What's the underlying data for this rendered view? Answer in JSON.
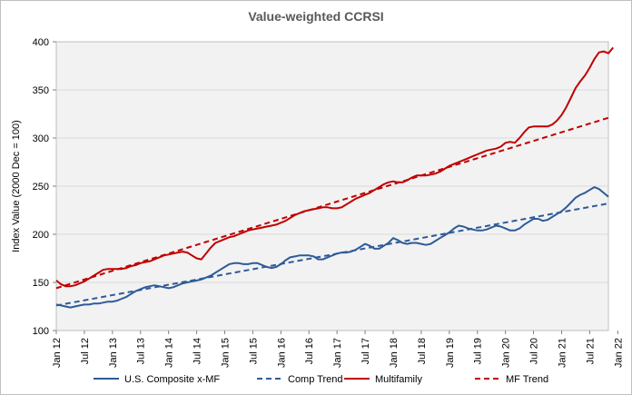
{
  "chart_data": {
    "type": "line",
    "title": "Value-weighted CCRSI",
    "xlabel": "",
    "ylabel": "Index Value (2000 Dec = 100)",
    "ylim": [
      100,
      400
    ],
    "yticks": [
      100,
      150,
      200,
      250,
      300,
      350,
      400
    ],
    "xticks": [
      "Jan 12",
      "Jul 12",
      "Jan 13",
      "Jul 13",
      "Jan 14",
      "Jul 14",
      "Jan 15",
      "Jul 15",
      "Jan 16",
      "Jul 16",
      "Jan 17",
      "Jul 17",
      "Jan 18",
      "Jul 18",
      "Jan 19",
      "Jul 19",
      "Jan 20",
      "Jul 20",
      "Jan 21",
      "Jul 21",
      "Jan 22"
    ],
    "x_start": "Jan 12",
    "x_interval": "month",
    "grid": "horizontal",
    "legend_position": "bottom",
    "series": [
      {
        "name": "U.S. Composite x-MF",
        "color": "#2e5b97",
        "style": "solid",
        "values": [
          127,
          126,
          125,
          124,
          125,
          126,
          127,
          127,
          128,
          128,
          129,
          130,
          130,
          131,
          133,
          135,
          138,
          141,
          143,
          145,
          146,
          147,
          146,
          145,
          144,
          145,
          147,
          149,
          150,
          151,
          152,
          153,
          155,
          157,
          160,
          163,
          166,
          169,
          170,
          170,
          169,
          169,
          170,
          170,
          168,
          166,
          165,
          166,
          169,
          173,
          176,
          177,
          178,
          178,
          178,
          177,
          174,
          174,
          176,
          178,
          180,
          181,
          181,
          182,
          184,
          187,
          190,
          188,
          185,
          185,
          188,
          191,
          196,
          194,
          191,
          190,
          191,
          191,
          190,
          189,
          190,
          193,
          196,
          199,
          202,
          206,
          209,
          208,
          206,
          205,
          204,
          204,
          205,
          207,
          209,
          208,
          206,
          204,
          204,
          206,
          210,
          213,
          216,
          216,
          214,
          215,
          218,
          221,
          224,
          228,
          233,
          238,
          241,
          243,
          246,
          249,
          247,
          243,
          239
        ]
      },
      {
        "name": "Comp Trend",
        "color": "#2e5b97",
        "style": "dashed",
        "values_start_end": [
          126,
          232
        ]
      },
      {
        "name": "Multifamily",
        "color": "#c00000",
        "style": "solid",
        "values": [
          152,
          148,
          146,
          146,
          147,
          149,
          151,
          154,
          157,
          160,
          163,
          164,
          164,
          164,
          164,
          165,
          167,
          168,
          170,
          171,
          172,
          174,
          176,
          178,
          179,
          180,
          181,
          182,
          181,
          178,
          175,
          174,
          180,
          186,
          191,
          193,
          195,
          197,
          198,
          200,
          202,
          204,
          205,
          206,
          207,
          208,
          209,
          210,
          212,
          214,
          217,
          220,
          222,
          224,
          225,
          226,
          227,
          228,
          228,
          227,
          227,
          228,
          231,
          234,
          237,
          239,
          241,
          243,
          246,
          249,
          252,
          254,
          255,
          254,
          254,
          256,
          259,
          261,
          261,
          261,
          262,
          263,
          265,
          268,
          271,
          273,
          275,
          277,
          279,
          281,
          283,
          285,
          287,
          288,
          289,
          291,
          295,
          296,
          295,
          300,
          306,
          311,
          312,
          312,
          312,
          312,
          314,
          318,
          324,
          332,
          342,
          352,
          359,
          365,
          373,
          382,
          389,
          390,
          388,
          394
        ]
      },
      {
        "name": "MF Trend",
        "color": "#c00000",
        "style": "dashed",
        "values_start_end": [
          144,
          321
        ]
      }
    ]
  }
}
